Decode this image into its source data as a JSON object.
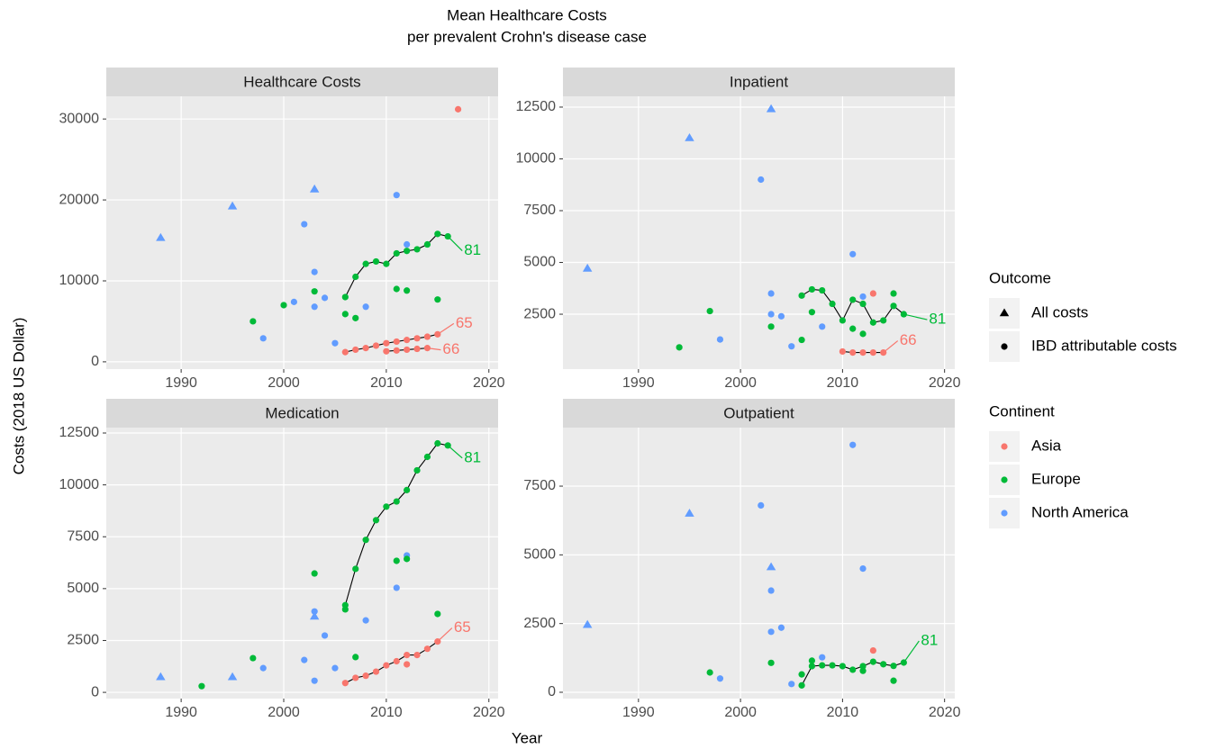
{
  "title": "Mean Healthcare Costs",
  "subtitle": "per prevalent Crohn's disease case",
  "xlabel": "Year",
  "ylabel": "Costs (2018 US Dollar)",
  "legends": [
    {
      "title": "Outcome",
      "items": [
        {
          "label": "All costs",
          "shape": "triangle"
        },
        {
          "label": "IBD attributable costs",
          "shape": "circle"
        }
      ]
    },
    {
      "title": "Continent",
      "items": [
        {
          "label": "Asia",
          "color": "#F8766D"
        },
        {
          "label": "Europe",
          "color": "#00BA38"
        },
        {
          "label": "North America",
          "color": "#619CFF"
        }
      ]
    }
  ],
  "chart_data": [
    {
      "type": "scatter",
      "title": "Healthcare Costs",
      "grid": true,
      "xlim": [
        1982.7,
        2020.9
      ],
      "xticks": [
        1990,
        2000,
        2010,
        2020
      ],
      "ylim": [
        -900,
        32800
      ],
      "yticks": [
        0,
        10000,
        20000,
        30000
      ],
      "series": [
        {
          "color": "#619CFF",
          "shape": "triangle",
          "x": [
            1988,
            1995,
            2003
          ],
          "values": [
            15300,
            19200,
            21300
          ]
        },
        {
          "color": "#619CFF",
          "shape": "circle",
          "x": [
            1998,
            2001,
            2002,
            2003,
            2003,
            2004,
            2005,
            2008,
            2011,
            2012
          ],
          "values": [
            2900,
            7400,
            17000,
            11100,
            6800,
            7900,
            2300,
            6800,
            20600,
            14500
          ]
        },
        {
          "color": "#00BA38",
          "shape": "circle",
          "x": [
            1997,
            2000,
            2003,
            2006,
            2007,
            2011,
            2012,
            2015
          ],
          "values": [
            5000,
            7000,
            8700,
            5900,
            5400,
            9000,
            8800,
            7700
          ]
        },
        {
          "color": "#F8766D",
          "shape": "circle",
          "x": [
            2017
          ],
          "values": [
            31200
          ]
        },
        {
          "color": "#00BA38",
          "shape": "circle",
          "line": true,
          "label": "81",
          "x": [
            2006,
            2007,
            2008,
            2009,
            2010,
            2011,
            2012,
            2013,
            2014,
            2015,
            2016
          ],
          "values": [
            8000,
            10500,
            12100,
            12400,
            12100,
            13400,
            13700,
            13900,
            14500,
            15800,
            15500
          ]
        },
        {
          "color": "#F8766D",
          "shape": "circle",
          "line": true,
          "label": "65",
          "x": [
            2006,
            2007,
            2008,
            2009,
            2010,
            2011,
            2012,
            2013,
            2014,
            2015
          ],
          "values": [
            1200,
            1500,
            1700,
            2000,
            2300,
            2500,
            2700,
            2900,
            3100,
            3400
          ]
        },
        {
          "color": "#F8766D",
          "shape": "circle",
          "line": true,
          "label": "66",
          "x": [
            2010,
            2011,
            2012,
            2013,
            2014
          ],
          "values": [
            1300,
            1400,
            1500,
            1600,
            1700
          ]
        }
      ]
    },
    {
      "type": "scatter",
      "title": "Inpatient",
      "grid": true,
      "xlim": [
        1982.6,
        2021
      ],
      "xticks": [
        1990,
        2000,
        2010,
        2020
      ],
      "ylim": [
        -150,
        13020
      ],
      "yticks": [
        2500,
        5000,
        7500,
        10000,
        12500
      ],
      "series": [
        {
          "color": "#619CFF",
          "shape": "triangle",
          "x": [
            1985,
            1995,
            2003
          ],
          "values": [
            4700,
            11000,
            12400
          ]
        },
        {
          "color": "#619CFF",
          "shape": "circle",
          "x": [
            1998,
            2002,
            2003,
            2003,
            2004,
            2005,
            2008,
            2011,
            2012
          ],
          "values": [
            1280,
            9000,
            3500,
            2500,
            2400,
            950,
            1900,
            5400,
            3350
          ]
        },
        {
          "color": "#00BA38",
          "shape": "circle",
          "x": [
            1994,
            1997,
            2003,
            2006,
            2007,
            2011,
            2012,
            2015
          ],
          "values": [
            900,
            2650,
            1900,
            1260,
            2600,
            1800,
            1550,
            3500
          ]
        },
        {
          "color": "#F8766D",
          "shape": "circle",
          "x": [
            2013
          ],
          "values": [
            3500
          ]
        },
        {
          "color": "#00BA38",
          "shape": "circle",
          "line": true,
          "label": "81",
          "x": [
            2006,
            2007,
            2008,
            2009,
            2010,
            2011,
            2012,
            2013,
            2014,
            2015,
            2016
          ],
          "values": [
            3400,
            3700,
            3650,
            3000,
            2200,
            3200,
            3000,
            2100,
            2200,
            2900,
            2500
          ]
        },
        {
          "color": "#F8766D",
          "shape": "circle",
          "line": true,
          "label": "66",
          "x": [
            2010,
            2011,
            2012,
            2013,
            2014
          ],
          "values": [
            700,
            650,
            650,
            650,
            650
          ]
        }
      ]
    },
    {
      "type": "scatter",
      "title": "Medication",
      "grid": true,
      "xlim": [
        1982.7,
        2020.9
      ],
      "xticks": [
        1990,
        2000,
        2010,
        2020
      ],
      "ylim": [
        -300,
        12760
      ],
      "yticks": [
        0,
        2500,
        5000,
        7500,
        10000,
        12500
      ],
      "series": [
        {
          "color": "#619CFF",
          "shape": "triangle",
          "x": [
            1988,
            1995,
            2003
          ],
          "values": [
            730,
            730,
            3650
          ]
        },
        {
          "color": "#619CFF",
          "shape": "circle",
          "x": [
            1998,
            2002,
            2003,
            2003,
            2004,
            2005,
            2008,
            2011,
            2012
          ],
          "values": [
            1170,
            1560,
            3900,
            560,
            2740,
            1170,
            3470,
            5040,
            6600
          ]
        },
        {
          "color": "#00BA38",
          "shape": "circle",
          "x": [
            1992,
            1997,
            2003,
            2006,
            2007,
            2011,
            2012,
            2015
          ],
          "values": [
            300,
            1650,
            5730,
            4000,
            1700,
            6340,
            6430,
            3780
          ]
        },
        {
          "color": "#F8766D",
          "shape": "circle",
          "x": [
            2012
          ],
          "values": [
            1350
          ]
        },
        {
          "color": "#00BA38",
          "shape": "circle",
          "line": true,
          "label": "81",
          "x": [
            2006,
            2007,
            2008,
            2009,
            2010,
            2011,
            2012,
            2013,
            2014,
            2015,
            2016
          ],
          "values": [
            4200,
            5950,
            7350,
            8300,
            8950,
            9200,
            9750,
            10700,
            11350,
            12000,
            11900
          ]
        },
        {
          "color": "#F8766D",
          "shape": "circle",
          "line": true,
          "label": "65",
          "x": [
            2006,
            2007,
            2008,
            2009,
            2010,
            2011,
            2012,
            2013,
            2014,
            2015
          ],
          "values": [
            450,
            700,
            800,
            1000,
            1300,
            1500,
            1800,
            1800,
            2100,
            2450
          ]
        }
      ]
    },
    {
      "type": "scatter",
      "title": "Outpatient",
      "grid": true,
      "xlim": [
        1982.6,
        2021
      ],
      "xticks": [
        1990,
        2000,
        2010,
        2020
      ],
      "ylim": [
        -230,
        9630
      ],
      "yticks": [
        0,
        2500,
        5000,
        7500
      ],
      "series": [
        {
          "color": "#619CFF",
          "shape": "triangle",
          "x": [
            1985,
            1995,
            2003
          ],
          "values": [
            2450,
            6500,
            4550
          ]
        },
        {
          "color": "#619CFF",
          "shape": "circle",
          "x": [
            1998,
            2002,
            2003,
            2003,
            2004,
            2005,
            2008,
            2011,
            2012
          ],
          "values": [
            500,
            6800,
            3700,
            2200,
            2350,
            300,
            1270,
            9000,
            4500
          ]
        },
        {
          "color": "#00BA38",
          "shape": "circle",
          "x": [
            1997,
            2003,
            2006,
            2007,
            2012,
            2015
          ],
          "values": [
            720,
            1070,
            650,
            1150,
            780,
            420
          ]
        },
        {
          "color": "#F8766D",
          "shape": "circle",
          "x": [
            2013
          ],
          "values": [
            1520
          ]
        },
        {
          "color": "#00BA38",
          "shape": "circle",
          "line": true,
          "label": "81",
          "x": [
            2006,
            2007,
            2008,
            2009,
            2010,
            2011,
            2012,
            2013,
            2014,
            2015,
            2016
          ],
          "values": [
            250,
            950,
            980,
            980,
            950,
            820,
            950,
            1110,
            1020,
            960,
            1080
          ]
        }
      ]
    }
  ]
}
